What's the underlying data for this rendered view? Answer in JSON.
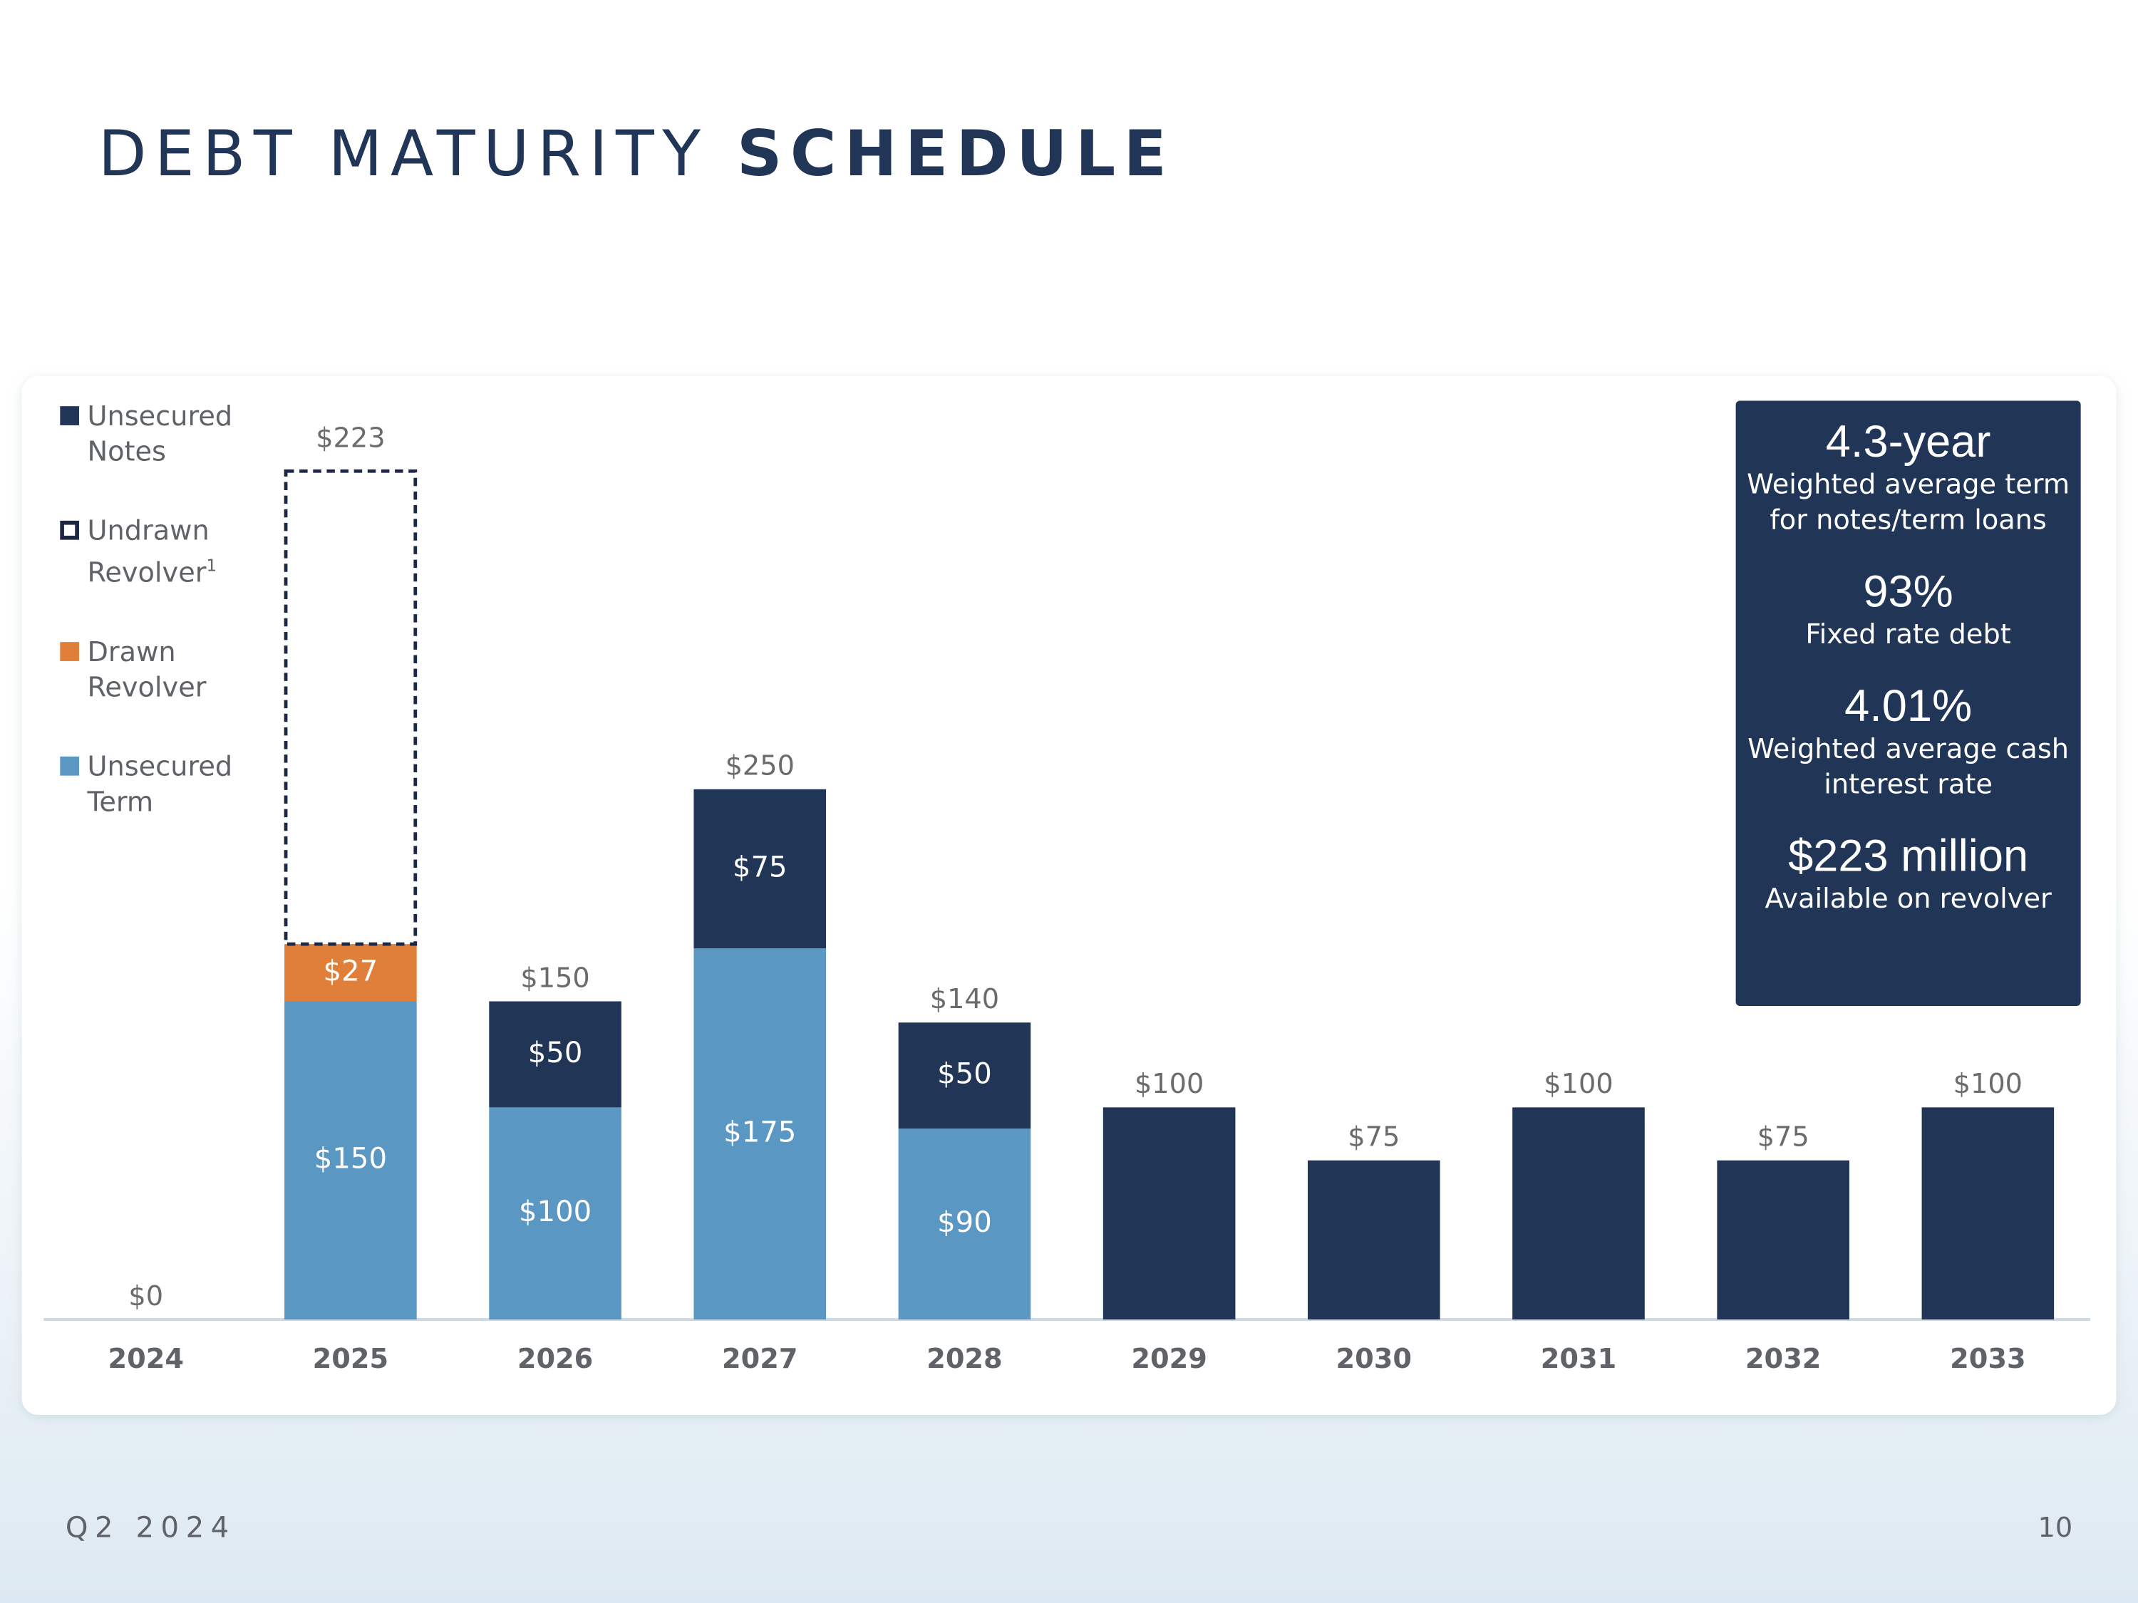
{
  "chart_data": {
    "type": "stacked_bar",
    "title": "DEBT MATURITY",
    "title_bold": "SCHEDULE",
    "categories": [
      "2024",
      "2025",
      "2026",
      "2027",
      "2028",
      "2029",
      "2030",
      "2031",
      "2032",
      "2033"
    ],
    "series": [
      {
        "name": "Unsecured Notes",
        "color": "#213557",
        "values": [
          null,
          null,
          50,
          75,
          50,
          100,
          75,
          100,
          75,
          100
        ],
        "value_labels": [
          null,
          null,
          "$50",
          "$75",
          "$50",
          null,
          null,
          null,
          null,
          null
        ]
      },
      {
        "name": "Undrawn Revolver",
        "footnote_mark": "1",
        "color": "#1b2744",
        "outline": "dashed",
        "values": [
          null,
          223,
          null,
          null,
          null,
          null,
          null,
          null,
          null,
          null
        ],
        "value_labels": [
          null,
          "$223",
          null,
          null,
          null,
          null,
          null,
          null,
          null,
          null
        ]
      },
      {
        "name": "Drawn Revolver",
        "color": "#e07f3a",
        "values": [
          null,
          27,
          null,
          null,
          null,
          null,
          null,
          null,
          null,
          null
        ],
        "value_labels": [
          null,
          "$27",
          null,
          null,
          null,
          null,
          null,
          null,
          null,
          null
        ]
      },
      {
        "name": "Unsecured Term",
        "color": "#5b97c3",
        "values": [
          null,
          150,
          100,
          175,
          90,
          null,
          null,
          null,
          null,
          null
        ],
        "value_labels": [
          null,
          "$150",
          "$100",
          "$175",
          "$90",
          null,
          null,
          null,
          null,
          null
        ]
      }
    ],
    "totals": [
      0,
      null,
      150,
      250,
      140,
      100,
      75,
      100,
      75,
      100
    ],
    "totals_labels": [
      "$0",
      null,
      "$150",
      "$250",
      "$140",
      "$100",
      "$75",
      "$100",
      "$75",
      "$100"
    ],
    "stats": [
      {
        "value": "4.3-year",
        "label": "Weighted average term for notes/term loans"
      },
      {
        "value": "93%",
        "label": "Fixed rate debt"
      },
      {
        "value": "4.01%",
        "label": "Weighted average cash interest rate"
      },
      {
        "value": "$223 million",
        "label": "Available on revolver"
      }
    ],
    "footer": "Q2 2024",
    "page_number": "10"
  }
}
